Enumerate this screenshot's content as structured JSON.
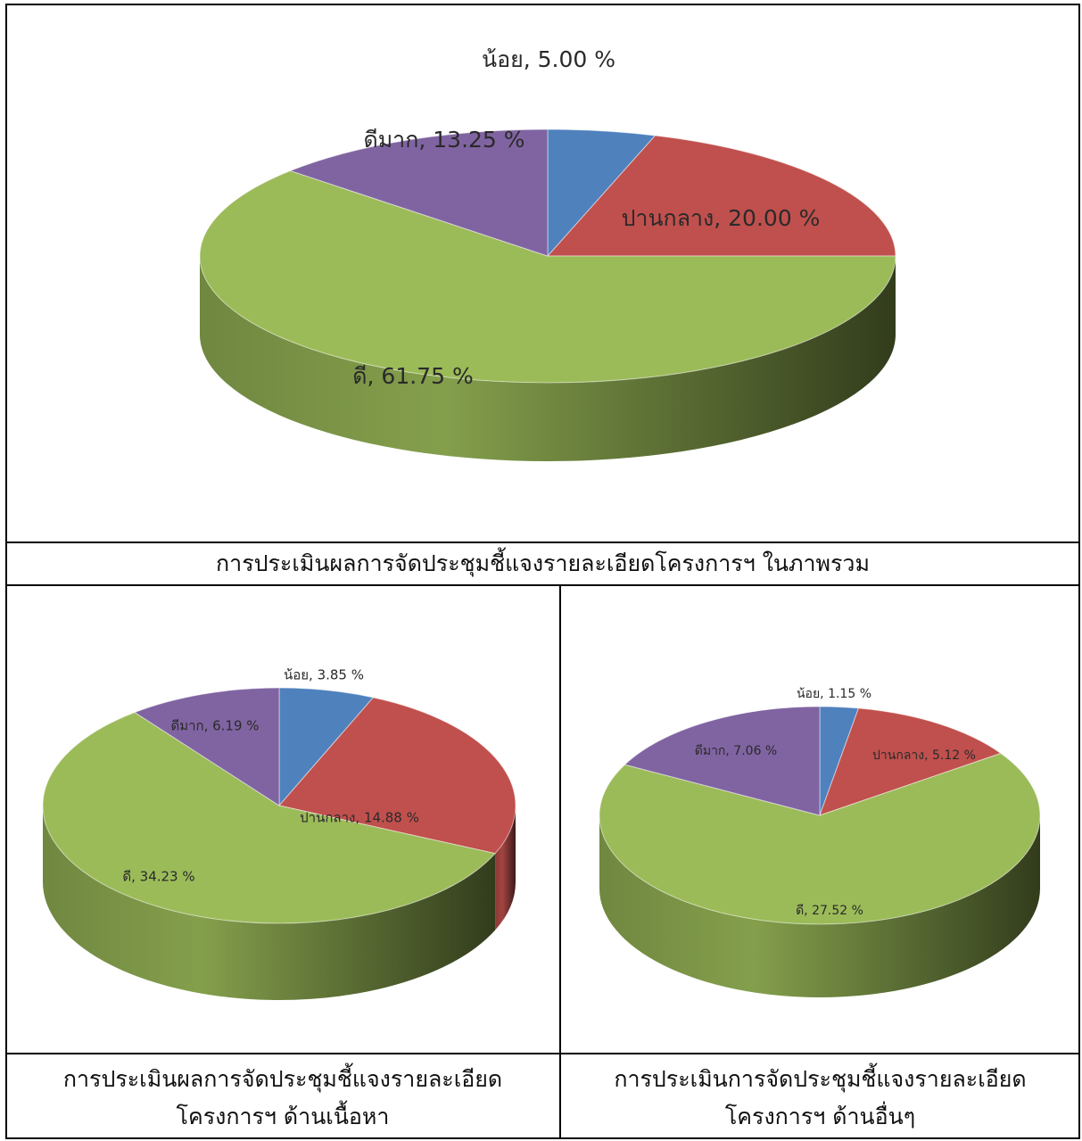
{
  "captions": {
    "overall": "การประเมินผลการจัดประชุมชี้แจงรายละเอียดโครงการฯ ในภาพรวม",
    "content_line1": "การประเมินผลการจัดประชุมชี้แจงรายละเอียด",
    "content_line2": "โครงการฯ ด้านเนื้อหา",
    "other_line1": "การประเมินการจัดประชุมชี้แจงรายละเอียด",
    "other_line2": "โครงการฯ ด้านอื่นๆ"
  },
  "chart_data": [
    {
      "type": "pie",
      "style": "3d",
      "title": "",
      "categories": [
        "น้อย",
        "ปานกลาง",
        "ดี",
        "ดีมาก"
      ],
      "values": [
        5.0,
        20.0,
        61.75,
        13.25
      ],
      "labels": [
        "น้อย, 5.00 %",
        "ปานกลาง, 20.00 %",
        "ดี, 61.75 %",
        "ดีมาก, 13.25 %"
      ],
      "colors": [
        "#4f81bd",
        "#c0504d",
        "#9bbb59",
        "#8064a2"
      ]
    },
    {
      "type": "pie",
      "style": "3d",
      "title": "",
      "categories": [
        "น้อย",
        "ปานกลาง",
        "ดี",
        "ดีมาก"
      ],
      "values": [
        3.85,
        14.88,
        34.23,
        6.19
      ],
      "labels": [
        "น้อย, 3.85 %",
        "ปานกลาง, 14.88 %",
        "ดี, 34.23 %",
        "ดีมาก, 6.19 %"
      ],
      "colors": [
        "#4f81bd",
        "#c0504d",
        "#9bbb59",
        "#8064a2"
      ]
    },
    {
      "type": "pie",
      "style": "3d",
      "title": "",
      "categories": [
        "น้อย",
        "ปานกลาง",
        "ดี",
        "ดีมาก"
      ],
      "values": [
        1.15,
        5.12,
        27.52,
        7.06
      ],
      "labels": [
        "น้อย, 1.15 %",
        "ปานกลาง, 5.12 %",
        "ดี, 27.52 %",
        "ดีมาก, 7.06 %"
      ],
      "colors": [
        "#4f81bd",
        "#c0504d",
        "#9bbb59",
        "#8064a2"
      ]
    }
  ]
}
